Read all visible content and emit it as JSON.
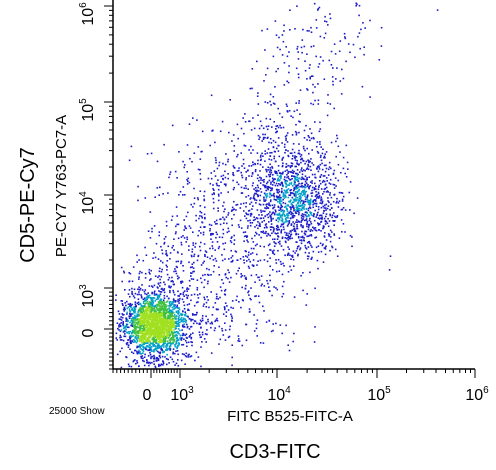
{
  "chart_data": {
    "type": "scatter",
    "subtype": "flow-cytometry-dot-plot",
    "outer_xlabel": "CD3-FITC",
    "outer_ylabel": "CD5-PE-Cy7",
    "xlabel": "FITC B525-FITC-A",
    "ylabel": "PE-CY7 Y763-PC7-A",
    "event_count_label": "25000 Show",
    "x_scale": "biexponential",
    "y_scale": "biexponential",
    "xlim": [
      -1000,
      1000000
    ],
    "ylim": [
      -1000,
      1000000
    ],
    "x_ticks": [
      {
        "value": 0,
        "base": "0",
        "exp": ""
      },
      {
        "value": 1000,
        "base": "10",
        "exp": "3"
      },
      {
        "value": 10000,
        "base": "10",
        "exp": "4"
      },
      {
        "value": 100000,
        "base": "10",
        "exp": "5"
      },
      {
        "value": 1000000,
        "base": "10",
        "exp": "6"
      }
    ],
    "y_ticks": [
      {
        "value": 0,
        "base": "0",
        "exp": ""
      },
      {
        "value": 1000,
        "base": "10",
        "exp": "3"
      },
      {
        "value": 10000,
        "base": "10",
        "exp": "4"
      },
      {
        "value": 100000,
        "base": "10",
        "exp": "5"
      },
      {
        "value": 1000000,
        "base": "10",
        "exp": "6"
      }
    ],
    "populations": [
      {
        "name": "",
        "center": [
          100,
          100
        ],
        "spread_decades": 0.35,
        "share": 0.55
      },
      {
        "name": "",
        "center": [
          15000,
          9000
        ],
        "spread_decades": 0.4,
        "share": 0.3
      },
      {
        "name": "",
        "center": [
          3000,
          2500
        ],
        "spread_decades": 0.8,
        "share": 0.15
      }
    ],
    "colors": {
      "low": "#1c1cc8",
      "mid": "#00a0c8",
      "high": "#40c040",
      "peak": "#a0e020"
    }
  }
}
